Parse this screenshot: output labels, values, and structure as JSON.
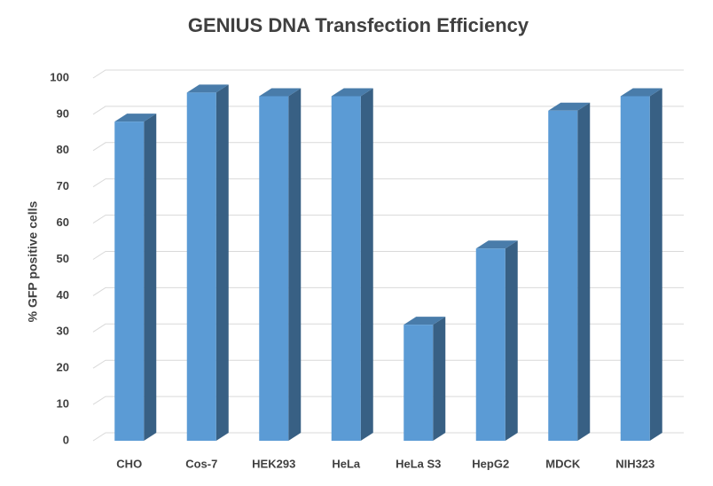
{
  "chart_data": {
    "type": "bar3d",
    "title": "GENIUS DNA Transfection Efficiency",
    "y_label": "% GFP positive cells",
    "categories": [
      "CHO",
      "Cos-7",
      "HEK293",
      "HeLa",
      "HeLa S3",
      "HepG2",
      "MDCK",
      "NIH323"
    ],
    "values": [
      88,
      96,
      95,
      95,
      32,
      53,
      91,
      95
    ],
    "color": "#5b9bd5",
    "ylim": [
      0,
      100
    ],
    "yticks": [
      0,
      10,
      20,
      30,
      40,
      50,
      60,
      70,
      80,
      90,
      100
    ],
    "grid": true
  }
}
